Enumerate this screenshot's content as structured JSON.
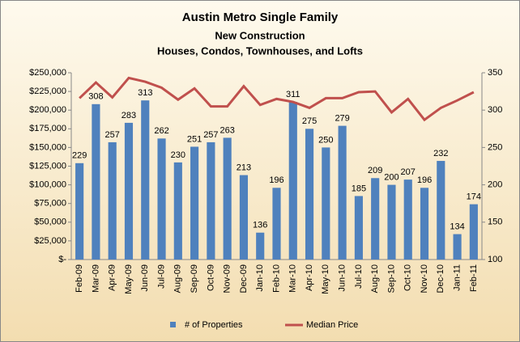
{
  "chart_data": {
    "type": "combo",
    "title": "Austin Metro Single Family",
    "subtitle": [
      "New Construction",
      "Houses, Condos, Townhouses, and Lofts"
    ],
    "categories": [
      "Feb-09",
      "Mar-09",
      "Apr-09",
      "May-09",
      "Jun-09",
      "Jul-09",
      "Aug-09",
      "Sep-09",
      "Oct-09",
      "Nov-09",
      "Dec-09",
      "Jan-10",
      "Feb-10",
      "Mar-10",
      "Apr-10",
      "May-10",
      "Jun-10",
      "Jul-10",
      "Aug-10",
      "Sep-10",
      "Oct-10",
      "Nov-10",
      "Dec-10",
      "Jan-11",
      "Feb-11"
    ],
    "series": [
      {
        "name": "# of Properties",
        "type": "bar",
        "axis": "y2",
        "color": "#4f81bd",
        "values": [
          229,
          308,
          257,
          283,
          313,
          262,
          230,
          251,
          257,
          263,
          213,
          136,
          196,
          311,
          275,
          250,
          279,
          185,
          209,
          200,
          207,
          196,
          232,
          134,
          174
        ]
      },
      {
        "name": "Median Price",
        "type": "line",
        "axis": "y",
        "color": "#c0504d",
        "values": [
          216000,
          237000,
          217000,
          243000,
          238000,
          230000,
          214000,
          229000,
          205000,
          205000,
          232000,
          207000,
          215000,
          211000,
          203000,
          216000,
          216000,
          224000,
          225000,
          197000,
          215000,
          187000,
          203000,
          213000,
          224000
        ]
      }
    ],
    "ylim": [
      0,
      250000
    ],
    "yticks": [
      {
        "value": 0,
        "label": "$-"
      },
      {
        "value": 25000,
        "label": "$25,000"
      },
      {
        "value": 50000,
        "label": "$50,000"
      },
      {
        "value": 75000,
        "label": "$75,000"
      },
      {
        "value": 100000,
        "label": "$100,000"
      },
      {
        "value": 125000,
        "label": "$125,000"
      },
      {
        "value": 150000,
        "label": "$150,000"
      },
      {
        "value": 175000,
        "label": "$175,000"
      },
      {
        "value": 200000,
        "label": "$200,000"
      },
      {
        "value": 225000,
        "label": "$225,000"
      },
      {
        "value": 250000,
        "label": "$250,000"
      }
    ],
    "y2lim": [
      100,
      350
    ],
    "y2ticks": [
      100,
      150,
      200,
      250,
      300,
      350
    ],
    "legend": "bottom"
  }
}
